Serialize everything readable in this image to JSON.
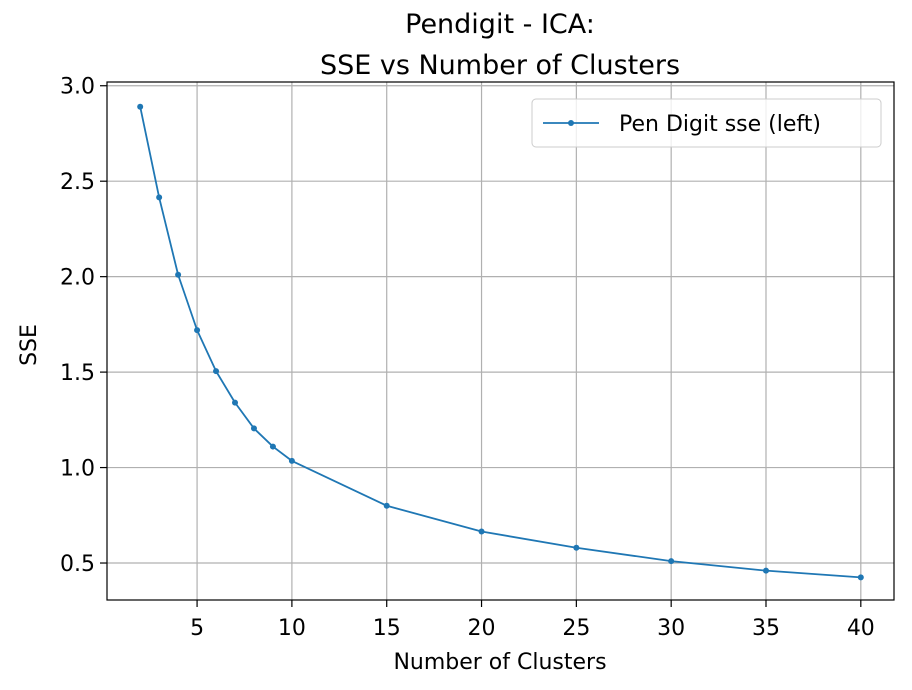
{
  "chart_data": {
    "type": "line",
    "title_line1": "Pendigit - ICA:",
    "title_line2": "SSE vs Number of Clusters",
    "xlabel": "Number of Clusters",
    "ylabel": "SSE",
    "xlim": [
      0.25,
      41.75
    ],
    "ylim": [
      0.3063,
      3.0196
    ],
    "xticks": [
      5,
      10,
      15,
      20,
      25,
      30,
      35,
      40
    ],
    "xtick_labels": [
      "5",
      "10",
      "15",
      "20",
      "25",
      "30",
      "35",
      "40"
    ],
    "yticks": [
      0.5,
      1.0,
      1.5,
      2.0,
      2.5,
      3.0
    ],
    "ytick_labels": [
      "0.5",
      "1.0",
      "1.5",
      "2.0",
      "2.5",
      "3.0"
    ],
    "grid": true,
    "legend_position": "upper-right",
    "series": [
      {
        "name": "Pen Digit sse (left)",
        "color": "#1f77b4",
        "x": [
          2,
          3,
          4,
          5,
          6,
          7,
          8,
          9,
          10,
          15,
          20,
          25,
          30,
          35,
          40
        ],
        "y": [
          2.89,
          2.415,
          2.01,
          1.72,
          1.505,
          1.34,
          1.205,
          1.11,
          1.035,
          0.8,
          0.665,
          0.58,
          0.51,
          0.46,
          0.425
        ]
      }
    ]
  }
}
